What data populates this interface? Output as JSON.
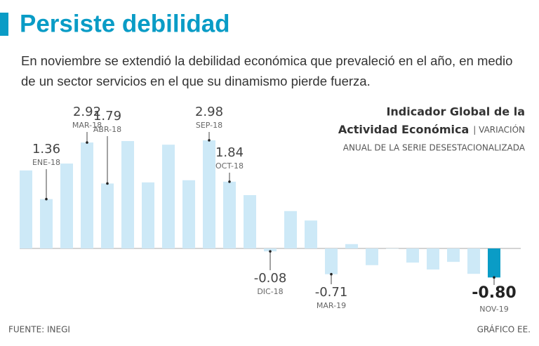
{
  "title": "Persiste debilidad",
  "subtitle": "En noviembre se extendió la debilidad económica que prevaleció en el año, en medio de un sector servicios en el que su dinamismo pierde fuerza.",
  "chart_data": {
    "type": "bar",
    "title_line1": "Indicador Global de la",
    "title_line2": "Actividad Económica",
    "note_line1": "| VARIACIÓN",
    "note_line2": "ANUAL DE LA SERIE DESESTACIONALIZADA",
    "categories": [
      null,
      "ENE-18",
      null,
      "MAR-18",
      "ABR-18",
      null,
      null,
      null,
      null,
      "SEP-18",
      "OCT-18",
      null,
      "DIC-18",
      null,
      null,
      "MAR-19",
      null,
      null,
      null,
      null,
      null,
      null,
      null,
      "NOV-19"
    ],
    "values": [
      2.15,
      1.36,
      2.34,
      2.92,
      1.79,
      2.96,
      1.82,
      2.86,
      1.88,
      2.98,
      1.84,
      1.47,
      -0.08,
      1.03,
      0.77,
      -0.71,
      0.12,
      -0.46,
      0,
      -0.39,
      -0.58,
      -0.37,
      -0.7,
      -0.8
    ],
    "value_labels": [
      null,
      "1.36",
      null,
      "2.92",
      "1.79",
      null,
      null,
      null,
      null,
      "2.98",
      "1.84",
      null,
      "-0.08",
      null,
      null,
      "-0.71",
      null,
      null,
      null,
      null,
      null,
      null,
      null,
      "-0.80"
    ],
    "color": "#cde9f7",
    "highlight_color": "#0a9cc6"
  },
  "footer": {
    "source": "FUENTE: INEGI",
    "credit": "GRÁFICO EE."
  }
}
